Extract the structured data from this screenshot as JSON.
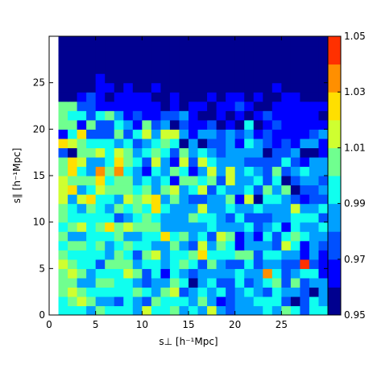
{
  "chart_data": {
    "type": "heatmap",
    "title": "",
    "xlabel": "s⊥ [h⁻¹Mpc]",
    "ylabel": "s∥ [h⁻¹Mpc]",
    "xlim": [
      0,
      30
    ],
    "ylim": [
      0,
      30
    ],
    "xticks": [
      0,
      5,
      10,
      15,
      20,
      25
    ],
    "yticks": [
      0,
      5,
      10,
      15,
      20,
      25
    ],
    "xtick_labels": [
      "0",
      "5",
      "10",
      "15",
      "20",
      "25"
    ],
    "ytick_labels": [
      "0",
      "5",
      "10",
      "15",
      "20",
      "25"
    ],
    "colorbar": {
      "min": 0.95,
      "max": 1.05,
      "tick_values": [
        0.95,
        0.97,
        0.99,
        1.01,
        1.03,
        1.05
      ],
      "tick_labels": [
        "0.95",
        "0.97",
        "0.99",
        "1.01",
        "1.03",
        "1.05"
      ],
      "levels": [
        0.95,
        0.96,
        0.97,
        0.98,
        0.99,
        1.0,
        1.01,
        1.02,
        1.03,
        1.04,
        1.05
      ],
      "colors": [
        "#00008f",
        "#0000ff",
        "#0050ff",
        "#00a0ff",
        "#10ffef",
        "#70ff8f",
        "#cfff30",
        "#ffdf00",
        "#ff8f00",
        "#ff3000",
        "#b00000"
      ]
    },
    "grid": false,
    "colormap": "jet",
    "x_cells": [
      1.5,
      2.5,
      3.5,
      4.5,
      5.5,
      6.5,
      7.5,
      8.5,
      9.5,
      10.5,
      11.5,
      12.5,
      13.5,
      14.5,
      15.5,
      16.5,
      17.5,
      18.5,
      19.5,
      20.5,
      21.5,
      22.5,
      23.5,
      24.5,
      25.5,
      26.5,
      27.5,
      28.5,
      29.5
    ],
    "y_cells": [
      0.5,
      1.5,
      2.5,
      3.5,
      4.5,
      5.5,
      6.5,
      7.5,
      8.5,
      9.5,
      10.5,
      11.5,
      12.5,
      13.5,
      14.5,
      15.5,
      16.5,
      17.5,
      18.5,
      19.5,
      20.5,
      21.5,
      22.5,
      23.5,
      24.5,
      25.5,
      26.5,
      27.5,
      28.5,
      29.5
    ],
    "z": [
      [
        0.996,
        0.999,
        0.993,
        0.986,
        1.002,
        0.995,
        0.993,
        0.997,
        0.981,
        1.014,
        0.993,
        0.995,
        1.007,
        0.988,
        0.993,
        0.985,
        1.015,
        0.981,
        0.973,
        0.989,
        0.983,
        0.988,
        0.997,
        0.984,
        1.008,
        0.997,
        0.979,
        0.993,
        0.991
      ],
      [
        0.997,
        1.002,
        1.011,
        1.003,
        0.988,
        0.983,
        0.977,
        0.991,
        0.984,
        0.978,
        1.001,
        0.999,
        0.999,
        0.997,
        0.988,
        1.006,
        0.984,
        0.962,
        0.975,
        0.982,
        0.981,
        0.995,
        0.992,
        0.992,
        0.972,
        0.952,
        0.977,
        0.996,
        0.985
      ],
      [
        1.002,
        1.011,
        1.003,
        0.992,
        0.997,
        0.994,
        0.994,
        0.996,
        1.004,
        0.993,
        0.985,
        1.006,
        1.016,
        0.976,
        0.98,
        0.997,
        0.983,
        0.993,
        0.974,
        0.982,
        0.993,
        0.987,
        0.971,
        0.99,
        0.987,
        0.983,
        0.973,
        0.956,
        0.981
      ],
      [
        1.007,
        1.002,
        0.989,
        0.983,
        1.004,
        1.001,
        0.993,
        0.995,
        0.985,
        0.978,
        0.987,
        0.985,
        1.003,
        0.995,
        0.958,
        0.986,
        0.995,
        0.973,
        0.97,
        0.995,
        0.974,
        0.986,
        0.991,
        1.007,
        0.974,
        1.004,
        0.975,
        0.987,
        0.98
      ],
      [
        1.002,
        1.011,
        1.004,
        0.983,
        0.992,
        0.997,
        0.995,
        1.013,
        1.003,
        0.975,
        0.997,
        0.968,
        0.991,
        0.985,
        0.973,
        0.989,
        0.985,
        0.986,
        0.981,
        0.999,
        0.986,
        0.987,
        1.032,
        0.993,
        0.97,
        0.987,
        0.993,
        0.999,
        0.968
      ],
      [
        1.019,
        1.008,
        0.992,
        0.997,
        0.974,
        1.002,
        1.006,
        1.001,
        0.989,
        0.997,
        0.99,
        0.989,
        0.996,
        1.003,
        0.998,
        0.975,
        1.002,
        0.982,
        0.979,
        0.974,
        0.99,
        0.97,
        0.988,
        0.983,
        0.978,
        0.973,
        1.042,
        0.978,
        0.962
      ],
      [
        1.002,
        0.994,
        0.997,
        0.996,
        0.993,
        0.987,
        1.009,
        0.992,
        0.979,
        1.003,
        1.017,
        0.982,
        0.99,
        0.992,
        1.007,
        1.029,
        0.998,
        0.99,
        0.997,
        1.005,
        1.002,
        0.973,
        0.993,
        0.997,
        0.986,
        0.985,
        0.965,
        0.985,
        0.96
      ],
      [
        0.998,
        1.001,
        1.002,
        0.992,
        1.002,
        0.982,
        0.994,
        1.008,
        0.994,
        0.99,
        0.985,
        0.989,
        1.008,
        0.985,
        0.976,
        1.011,
        0.986,
        1.005,
        0.993,
        0.969,
        0.987,
        0.987,
        0.983,
        0.974,
        1.012,
        0.998,
        0.965,
        0.981,
        0.974
      ],
      [
        1.007,
        0.989,
        0.985,
        0.998,
        0.997,
        0.996,
        1.007,
        0.988,
        0.983,
        0.999,
        0.995,
        1.021,
        0.996,
        1.009,
        0.987,
        0.996,
        0.977,
        1.014,
        1.009,
        0.968,
        0.988,
        0.964,
        0.995,
        0.972,
        0.993,
        1.007,
        0.993,
        0.981,
        0.987
      ],
      [
        0.997,
        1.009,
        1.01,
        0.994,
        1.001,
        1.022,
        1.005,
        1.014,
        1.008,
        1.007,
        1.002,
        0.987,
        0.98,
        0.984,
        0.982,
        0.982,
        0.994,
        0.988,
        0.984,
        0.983,
        0.996,
        0.974,
        0.989,
        0.994,
        0.965,
        0.993,
        0.986,
        0.983,
        0.998
      ],
      [
        1.004,
        0.996,
        0.994,
        0.998,
        0.994,
        0.997,
        0.974,
        0.989,
        0.993,
        1.009,
        0.993,
        0.983,
        0.982,
        0.984,
        1.009,
        0.994,
        0.994,
        0.981,
        0.973,
        0.995,
        0.972,
        0.977,
        0.971,
        0.989,
        0.982,
        0.994,
        0.99,
        0.997,
        0.977
      ],
      [
        1.006,
        0.991,
        0.985,
        1.002,
        0.997,
        0.986,
        1.009,
        0.996,
        1.006,
        0.996,
        1.021,
        0.993,
        0.981,
        0.988,
        0.989,
        1.011,
        0.986,
        0.986,
        0.991,
        0.983,
        0.983,
        0.998,
        0.985,
        0.982,
        0.98,
        1.016,
        0.986,
        0.987,
        0.996
      ],
      [
        1.01,
        0.986,
        1.016,
        1.02,
        0.994,
        0.996,
        0.982,
        1.014,
        1.005,
        1.014,
        1.02,
        0.984,
        1.004,
        0.986,
        0.979,
        0.979,
        0.988,
        0.988,
        1.001,
        0.968,
        1.019,
        0.957,
        0.993,
        0.991,
        0.98,
        0.973,
        0.961,
        0.976,
        0.973
      ],
      [
        1.011,
        1.02,
        0.987,
        0.993,
        1.011,
        1.004,
        1.0,
        1.0,
        0.995,
        1.001,
        0.986,
        1.008,
        1.011,
        0.98,
        0.999,
        1.01,
        0.978,
        0.994,
        0.988,
        0.988,
        0.992,
        0.978,
        1.001,
        0.986,
        1.001,
        0.956,
        0.978,
        0.973,
        0.981
      ],
      [
        1.016,
        1.007,
        1.001,
        1.009,
        1.021,
        0.995,
        1.008,
        1.001,
        0.982,
        0.998,
        0.986,
        0.993,
        0.969,
        1.001,
        1.001,
        0.99,
        1.002,
        0.977,
        1.013,
        0.981,
        0.986,
        0.992,
        0.97,
        0.997,
        0.958,
        0.977,
        0.98,
        0.984,
        0.971
      ],
      [
        1.006,
        1.02,
        0.996,
        0.986,
        1.032,
        1.007,
        1.033,
        0.998,
        0.983,
        0.967,
        0.996,
        0.983,
        1.007,
        0.996,
        0.963,
        0.985,
        1.017,
        0.989,
        1.012,
        0.983,
        0.997,
        0.988,
        0.976,
        1.007,
        0.976,
        0.989,
        0.994,
        0.989,
        0.98
      ],
      [
        1.007,
        1.02,
        1.018,
        0.984,
        0.981,
        0.995,
        1.02,
        1.002,
        0.997,
        0.977,
        1.01,
        0.986,
        0.968,
        1.015,
        0.975,
        1.014,
        0.999,
        0.989,
        0.986,
        0.984,
        0.977,
        0.973,
        0.976,
        0.978,
        0.992,
        0.976,
        0.969,
        0.98,
        0.985
      ],
      [
        0.976,
        0.959,
        1.008,
        1.004,
        1.017,
        0.993,
        1.016,
        1.001,
        0.986,
        0.996,
        1.007,
        0.996,
        0.974,
        1.009,
        0.985,
        0.993,
        0.983,
        0.973,
        0.986,
        0.98,
        0.981,
        0.98,
        0.953,
        0.979,
        0.979,
        0.981,
        0.959,
        0.959,
        0.96
      ],
      [
        1.029,
        1.012,
        1.001,
        0.993,
        0.993,
        0.99,
        0.982,
        0.995,
        0.976,
        0.985,
        0.992,
        1.006,
        0.994,
        0.959,
        0.988,
        0.958,
        0.976,
        0.975,
        0.989,
        0.965,
        0.999,
        0.981,
        0.976,
        0.962,
        0.972,
        0.965,
        0.984,
        0.981,
        0.96
      ],
      [
        0.961,
        0.999,
        1.02,
        0.972,
        0.979,
        0.979,
        1.004,
        0.979,
        0.991,
        1.014,
        0.984,
        1.016,
        1.017,
        0.987,
        0.961,
        0.983,
        0.984,
        0.974,
        0.986,
        0.976,
        0.985,
        0.966,
        0.977,
        0.968,
        0.966,
        0.96,
        0.96,
        0.97,
        0.989
      ],
      [
        1.0,
        1.006,
        0.966,
        1.007,
        0.979,
        0.974,
        0.99,
        0.986,
        0.969,
        1.0,
        0.979,
        0.983,
        0.957,
        0.971,
        0.963,
        0.965,
        0.971,
        0.958,
        0.962,
        0.951,
        0.992,
        0.955,
        0.962,
        0.976,
        0.962,
        0.965,
        0.962,
        0.966,
        0.963
      ],
      [
        1.004,
        0.995,
        0.992,
        0.975,
        0.993,
        1.001,
        0.988,
        0.963,
        0.971,
        0.965,
        0.969,
        0.973,
        0.97,
        0.987,
        0.964,
        0.953,
        0.959,
        0.964,
        0.959,
        0.962,
        0.954,
        0.963,
        0.976,
        0.965,
        0.965,
        0.96,
        0.96,
        0.965,
        0.955
      ],
      [
        1.009,
        1.003,
        0.974,
        0.976,
        0.96,
        0.963,
        0.963,
        0.964,
        0.964,
        0.969,
        0.967,
        0.951,
        0.966,
        0.953,
        0.967,
        0.961,
        0.956,
        0.962,
        0.96,
        0.974,
        0.969,
        0.954,
        0.953,
        0.961,
        0.961,
        0.963,
        0.964,
        0.966,
        0.968
      ],
      [
        0.955,
        0.954,
        0.961,
        0.97,
        0.966,
        0.954,
        0.965,
        0.968,
        0.96,
        0.96,
        0.955,
        0.955,
        0.961,
        0.951,
        0.959,
        0.955,
        0.96,
        0.952,
        0.96,
        0.965,
        0.955,
        0.963,
        0.956,
        0.956,
        0.96,
        0.96,
        0.958,
        0.958,
        0.954
      ],
      [
        0.956,
        0.955,
        0.951,
        0.954,
        0.964,
        0.96,
        0.953,
        0.96,
        0.958,
        0.957,
        0.962,
        0.957,
        0.954,
        0.951,
        0.952,
        0.954,
        0.952,
        0.951,
        0.952,
        0.953,
        0.956,
        0.959,
        0.951,
        0.962,
        0.957,
        0.957,
        0.951,
        0.956,
        0.955
      ],
      [
        0.955,
        0.953,
        0.956,
        0.957,
        0.961,
        0.951,
        0.953,
        0.954,
        0.953,
        0.953,
        0.952,
        0.952,
        0.957,
        0.958,
        0.952,
        0.956,
        0.955,
        0.955,
        0.956,
        0.955,
        0.956,
        0.954,
        0.951,
        0.955,
        0.952,
        0.951,
        0.955,
        0.958,
        0.951
      ],
      [
        0.951,
        0.952,
        0.951,
        0.953,
        0.953,
        0.955,
        0.951,
        0.953,
        0.955,
        0.952,
        0.953,
        0.957,
        0.952,
        0.952,
        0.951,
        0.957,
        0.951,
        0.951,
        0.953,
        0.951,
        0.951,
        0.951,
        0.952,
        0.953,
        0.953,
        0.954,
        0.954,
        0.951,
        0.952
      ],
      [
        0.953,
        0.954,
        0.952,
        0.952,
        0.953,
        0.952,
        0.951,
        0.951,
        0.953,
        0.954,
        0.951,
        0.951,
        0.951,
        0.953,
        0.953,
        0.951,
        0.952,
        0.953,
        0.951,
        0.954,
        0.951,
        0.954,
        0.952,
        0.951,
        0.951,
        0.952,
        0.952,
        0.952,
        0.952
      ],
      [
        0.951,
        0.951,
        0.951,
        0.951,
        0.951,
        0.951,
        0.951,
        0.951,
        0.951,
        0.951,
        0.951,
        0.951,
        0.951,
        0.952,
        0.951,
        0.951,
        0.951,
        0.951,
        0.951,
        0.951,
        0.952,
        0.951,
        0.951,
        0.951,
        0.951,
        0.951,
        0.951,
        0.951,
        0.951
      ],
      [
        0.951,
        0.951,
        0.951,
        0.951,
        0.951,
        0.951,
        0.951,
        0.951,
        0.951,
        0.951,
        0.951,
        0.951,
        0.951,
        0.951,
        0.951,
        0.951,
        0.951,
        0.951,
        0.951,
        0.951,
        0.951,
        0.951,
        0.951,
        0.951,
        0.951,
        0.951,
        0.951,
        0.951,
        0.951
      ]
    ]
  }
}
